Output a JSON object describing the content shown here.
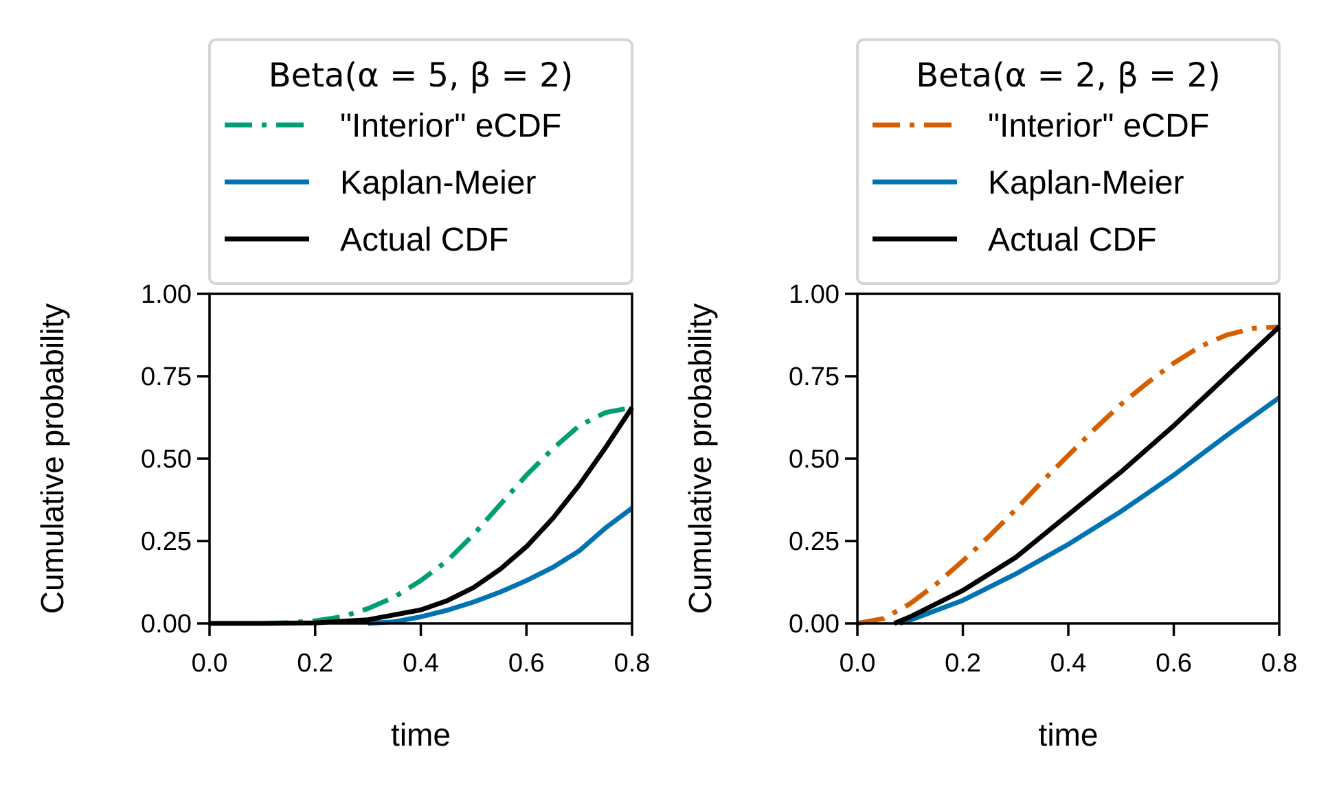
{
  "chart_data": [
    {
      "type": "line",
      "legend_title": "Beta(α = 5, β = 2)",
      "xlabel": "time",
      "ylabel": "Cumulative probability",
      "xlim": [
        0,
        0.8
      ],
      "ylim": [
        0,
        1
      ],
      "xticks": [
        "0.0",
        "0.2",
        "0.4",
        "0.6",
        "0.8"
      ],
      "yticks": [
        "0.00",
        "0.25",
        "0.50",
        "0.75",
        "1.00"
      ],
      "legend_position": "above",
      "grid": false,
      "series": [
        {
          "name": "\"Interior\" eCDF",
          "color": "#029e73",
          "style": "dashdot",
          "x": [
            0,
            0.1,
            0.15,
            0.2,
            0.25,
            0.3,
            0.35,
            0.4,
            0.45,
            0.5,
            0.55,
            0.6,
            0.65,
            0.7,
            0.75,
            0.8
          ],
          "y": [
            0,
            0,
            0.002,
            0.008,
            0.02,
            0.045,
            0.08,
            0.13,
            0.19,
            0.27,
            0.36,
            0.45,
            0.53,
            0.6,
            0.64,
            0.655
          ]
        },
        {
          "name": "Kaplan-Meier",
          "color": "#0173b2",
          "style": "solid",
          "x": [
            0.3,
            0.35,
            0.4,
            0.45,
            0.5,
            0.55,
            0.6,
            0.65,
            0.7,
            0.75,
            0.8
          ],
          "y": [
            0,
            0.005,
            0.02,
            0.04,
            0.065,
            0.095,
            0.13,
            0.17,
            0.22,
            0.29,
            0.35
          ]
        },
        {
          "name": "Actual CDF",
          "color": "#000000",
          "style": "solid",
          "x": [
            0,
            0.1,
            0.2,
            0.3,
            0.4,
            0.45,
            0.5,
            0.55,
            0.6,
            0.65,
            0.7,
            0.75,
            0.8
          ],
          "y": [
            0,
            0.0001,
            0.0016,
            0.011,
            0.041,
            0.069,
            0.109,
            0.164,
            0.233,
            0.319,
            0.42,
            0.534,
            0.655
          ]
        }
      ]
    },
    {
      "type": "line",
      "legend_title": "Beta(α = 2, β = 2)",
      "xlabel": "time",
      "ylabel": "Cumulative probability",
      "xlim": [
        0,
        0.8
      ],
      "ylim": [
        0,
        1
      ],
      "xticks": [
        "0.0",
        "0.2",
        "0.4",
        "0.6",
        "0.8"
      ],
      "yticks": [
        "0.00",
        "0.25",
        "0.50",
        "0.75",
        "1.00"
      ],
      "legend_position": "above",
      "grid": false,
      "series": [
        {
          "name": "\"Interior\" eCDF",
          "color": "#d55e00",
          "style": "dashdot",
          "x": [
            0,
            0.05,
            0.1,
            0.15,
            0.2,
            0.25,
            0.3,
            0.35,
            0.4,
            0.45,
            0.5,
            0.55,
            0.6,
            0.65,
            0.7,
            0.75,
            0.8
          ],
          "y": [
            0,
            0.015,
            0.06,
            0.12,
            0.19,
            0.265,
            0.345,
            0.43,
            0.51,
            0.59,
            0.665,
            0.73,
            0.79,
            0.84,
            0.875,
            0.895,
            0.9
          ]
        },
        {
          "name": "Kaplan-Meier",
          "color": "#0173b2",
          "style": "solid",
          "x": [
            0.08,
            0.1,
            0.2,
            0.3,
            0.4,
            0.5,
            0.6,
            0.7,
            0.8
          ],
          "y": [
            0,
            0.01,
            0.07,
            0.15,
            0.24,
            0.34,
            0.45,
            0.57,
            0.685
          ]
        },
        {
          "name": "Actual CDF",
          "color": "#000000",
          "style": "solid",
          "x": [
            0.07,
            0.1,
            0.2,
            0.3,
            0.4,
            0.5,
            0.6,
            0.7,
            0.8
          ],
          "y": [
            0,
            0.02,
            0.1,
            0.2,
            0.33,
            0.46,
            0.6,
            0.75,
            0.9
          ]
        }
      ]
    }
  ]
}
